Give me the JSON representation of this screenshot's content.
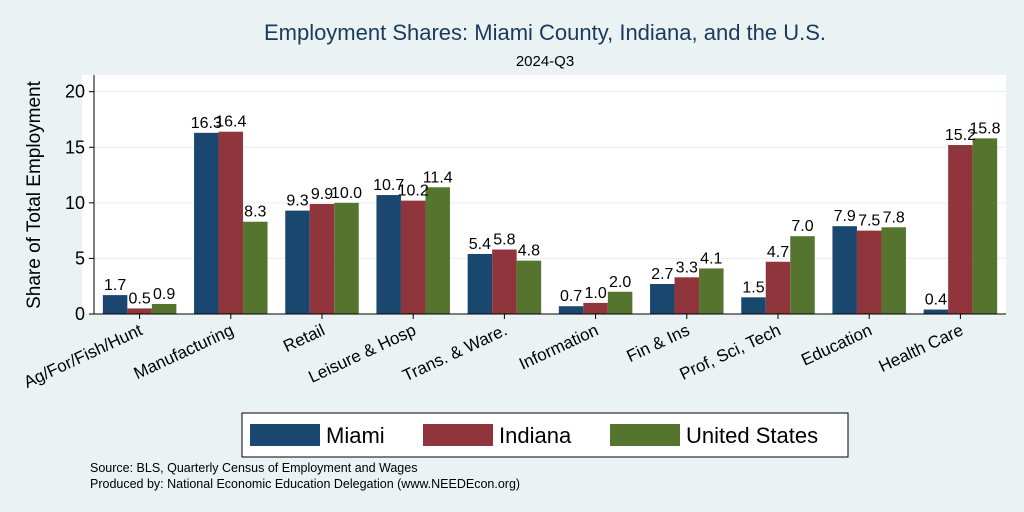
{
  "chart_data": {
    "type": "bar",
    "title": "Employment Shares: Miami County, Indiana, and the U.S.",
    "subtitle": "2024-Q3",
    "ylabel": "Share of Total Employment",
    "xlabel": "",
    "ylim": [
      0,
      21.5
    ],
    "yticks": [
      0,
      5,
      10,
      15,
      20
    ],
    "grid": true,
    "legend_position": "bottom",
    "categories": [
      "Ag/For/Fish/Hunt",
      "Manufacturing",
      "Retail",
      "Leisure & Hosp",
      "Trans. & Ware.",
      "Information",
      "Fin & Ins",
      "Prof, Sci, Tech",
      "Education",
      "Health Care"
    ],
    "series": [
      {
        "name": "Miami",
        "color": "#1a476f",
        "values": [
          1.7,
          16.3,
          9.3,
          10.7,
          5.4,
          0.7,
          2.7,
          1.5,
          7.9,
          0.4
        ],
        "labels": [
          "1.7",
          "16.3",
          "9.3",
          "10.7",
          "5.4",
          "0.7",
          "2.7",
          "1.5",
          "7.9",
          "0.4"
        ]
      },
      {
        "name": "Indiana",
        "color": "#90353b",
        "values": [
          0.5,
          16.4,
          9.9,
          10.2,
          5.8,
          1.0,
          3.3,
          4.7,
          7.5,
          15.2
        ],
        "labels": [
          "0.5",
          "16.4",
          "9.9",
          "10.2",
          "5.8",
          "1.0",
          "3.3",
          "4.7",
          "7.5",
          "15.2"
        ]
      },
      {
        "name": "United States",
        "color": "#55752f",
        "values": [
          0.9,
          8.3,
          10.0,
          11.4,
          4.8,
          2.0,
          4.1,
          7.0,
          7.8,
          15.8
        ],
        "labels": [
          "0.9",
          "8.3",
          "10.0",
          "11.4",
          "4.8",
          "2.0",
          "4.1",
          "7.0",
          "7.8",
          "15.8"
        ]
      }
    ]
  },
  "footer": {
    "source": "Source: BLS, Quarterly Census of Employment and Wages",
    "produced": "Produced by: National Economic Education Delegation (www.NEEDEcon.org)"
  }
}
